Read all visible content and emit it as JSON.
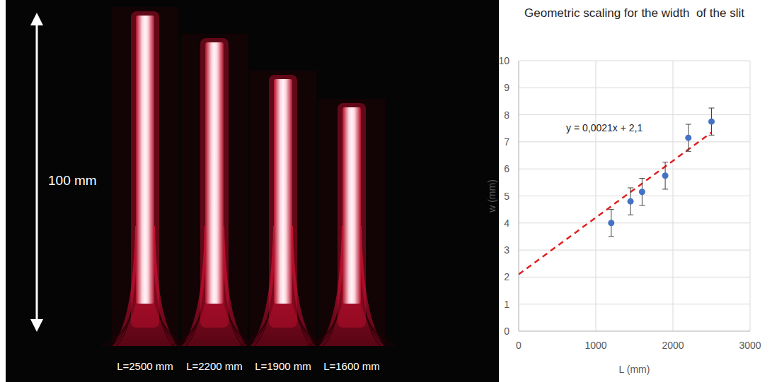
{
  "chart_data": {
    "type": "scatter",
    "title": "Geometric scaling for the width  of the slit",
    "x_label": "L (mm)",
    "y_label": "w (mm)",
    "x": [
      1200,
      1450,
      1600,
      1900,
      2200,
      2500
    ],
    "values": [
      4.0,
      4.8,
      5.15,
      5.75,
      7.15,
      7.75
    ],
    "errors": [
      0.5,
      0.5,
      0.5,
      0.5,
      0.5,
      0.5
    ],
    "color": "#4472c4",
    "marker": "circle",
    "xlim": [
      0,
      3000
    ],
    "xticks": [
      0,
      1000,
      2000,
      3000
    ],
    "ylim": [
      0,
      10
    ],
    "yticks": [
      0,
      1,
      2,
      3,
      4,
      5,
      6,
      7,
      8,
      9,
      10
    ],
    "grid": true,
    "trendline": {
      "slope": 0.0021,
      "intercept": 2.1,
      "label": "y = 0,0021x + 2,1",
      "color": "#e02020",
      "line_style": "dashed"
    }
  },
  "photo": {
    "scale_label": "100 mm",
    "panels": [
      {
        "label": "L=2500 mm"
      },
      {
        "label": "L=2200 mm"
      },
      {
        "label": "L=1900 mm"
      },
      {
        "label": "L=1600 mm"
      }
    ]
  }
}
